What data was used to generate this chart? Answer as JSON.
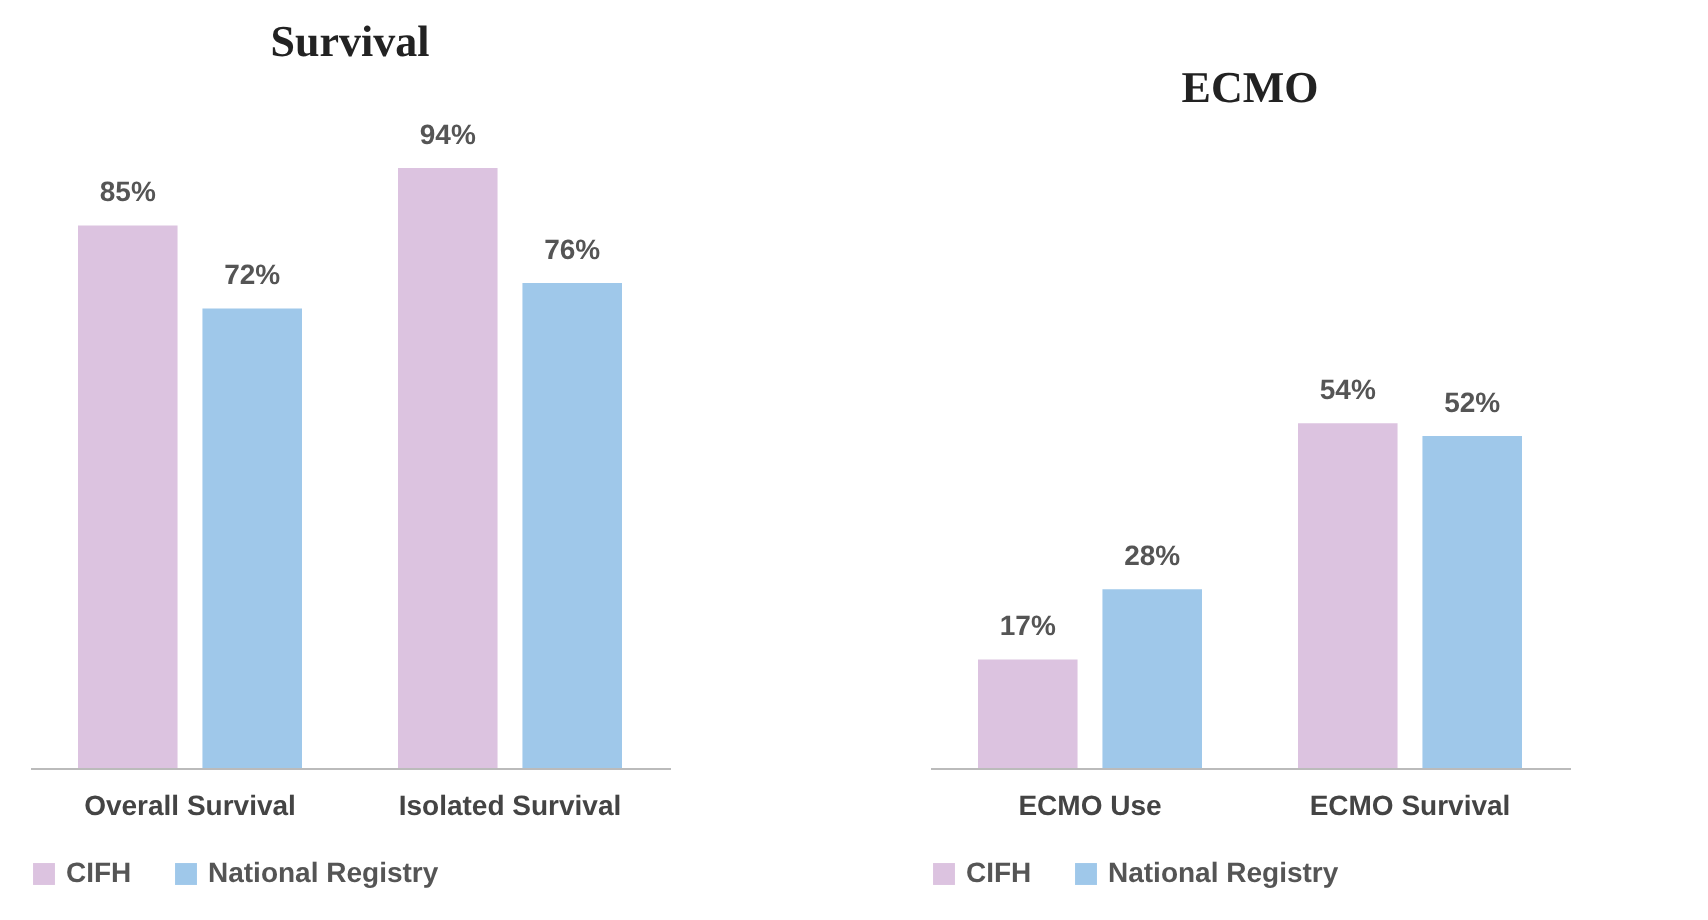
{
  "chart_data": [
    {
      "type": "bar",
      "title": "Survival",
      "categories": [
        "Overall Survival",
        "Isolated Survival"
      ],
      "legend": "bottom",
      "series": [
        {
          "name": "CIFH",
          "color": "#dcc3e0",
          "values": [
            85,
            94
          ],
          "value_labels": [
            "85%",
            "94%"
          ]
        },
        {
          "name": "National Registry",
          "color": "#9fc8ea",
          "values": [
            72,
            76
          ],
          "value_labels": [
            "72%",
            "76%"
          ]
        }
      ]
    },
    {
      "type": "bar",
      "title": "ECMO",
      "categories": [
        "ECMO Use",
        "ECMO Survival"
      ],
      "legend": "bottom",
      "series": [
        {
          "name": "CIFH",
          "color": "#dcc3e0",
          "values": [
            17,
            54
          ],
          "value_labels": [
            "17%",
            "54%"
          ]
        },
        {
          "name": "National Registry",
          "color": "#9fc8ea",
          "values": [
            28,
            52
          ],
          "value_labels": [
            "28%",
            "52%"
          ]
        }
      ]
    }
  ]
}
